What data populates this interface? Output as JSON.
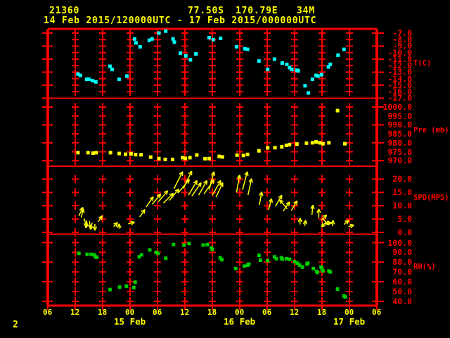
{
  "header": {
    "station_id": "21360",
    "latitude": "77.50S",
    "longitude": "170.79E",
    "elevation": "34M",
    "time_range": "14 Feb 2015/120000UTC - 17 Feb 2015/000000UTC"
  },
  "footer": {
    "page_number": "2"
  },
  "colors": {
    "background": "#000000",
    "frame": "#ff0000",
    "label_yellow": "#ffff00",
    "temp": "#00ffff",
    "pressure": "#ffff00",
    "wind": "#ffff00",
    "humidity": "#00cc00"
  },
  "chart_data": {
    "type": "scatter",
    "subtype": "meteogram-time-series",
    "title": "Station 21360 meteogram, 14 Feb 2015 12UTC - 17 Feb 2015 00UTC",
    "x_axis": {
      "unit": "hours since 14 Feb 2015 06UTC",
      "range_hours": [
        0,
        72
      ],
      "hour_labels": [
        {
          "t": 0,
          "label": "06"
        },
        {
          "t": 6,
          "label": "12"
        },
        {
          "t": 12,
          "label": "18"
        },
        {
          "t": 18,
          "label": "00"
        },
        {
          "t": 24,
          "label": "06"
        },
        {
          "t": 30,
          "label": "12"
        },
        {
          "t": 36,
          "label": "18"
        },
        {
          "t": 42,
          "label": "00"
        },
        {
          "t": 48,
          "label": "06"
        },
        {
          "t": 54,
          "label": "12"
        },
        {
          "t": 60,
          "label": "18"
        },
        {
          "t": 66,
          "label": "00"
        },
        {
          "t": 72,
          "label": "06"
        }
      ],
      "date_labels": [
        {
          "t": 18,
          "label": "15 Feb"
        },
        {
          "t": 42,
          "label": "16 Feb"
        },
        {
          "t": 66,
          "label": "17 Feb"
        }
      ],
      "grid_hours": [
        6,
        12,
        18,
        24,
        30,
        36,
        42,
        48,
        54,
        60,
        66
      ]
    },
    "panels": [
      {
        "id": "temp",
        "axis_title": "T(C)",
        "ticks": [
          -7.0,
          -8.0,
          -9.0,
          -10.0,
          -11.0,
          -12.0,
          -13.0,
          -14.0,
          -15.0,
          -16.0,
          -17.0
        ],
        "border_tick_step": 2,
        "marker": "square",
        "color_key": "temp",
        "points": [
          [
            6.6,
            -13.3
          ],
          [
            7.1,
            -13.5
          ],
          [
            8.5,
            -14.1
          ],
          [
            9.0,
            -14.1
          ],
          [
            9.8,
            -14.3
          ],
          [
            10.5,
            -14.5
          ],
          [
            13.6,
            -12.1
          ],
          [
            14.1,
            -12.6
          ],
          [
            15.6,
            -14.1
          ],
          [
            17.3,
            -13.6
          ],
          [
            19.0,
            -7.9
          ],
          [
            19.3,
            -8.5
          ],
          [
            20.2,
            -9.1
          ],
          [
            22.2,
            -8.1
          ],
          [
            22.8,
            -7.9
          ],
          [
            24.3,
            -7.0
          ],
          [
            25.8,
            -6.7
          ],
          [
            27.4,
            -7.9
          ],
          [
            27.7,
            -8.4
          ],
          [
            29.0,
            -10.1
          ],
          [
            30.2,
            -10.5
          ],
          [
            31.2,
            -11.1
          ],
          [
            32.4,
            -10.2
          ],
          [
            35.3,
            -7.7
          ],
          [
            36.2,
            -8.0
          ],
          [
            37.8,
            -7.8
          ],
          [
            41.3,
            -9.1
          ],
          [
            43.1,
            -9.4
          ],
          [
            43.7,
            -9.5
          ],
          [
            46.2,
            -11.3
          ],
          [
            48.1,
            -12.6
          ],
          [
            49.6,
            -11.0
          ],
          [
            51.3,
            -11.6
          ],
          [
            52.3,
            -11.8
          ],
          [
            52.9,
            -12.3
          ],
          [
            53.4,
            -12.6
          ],
          [
            54.5,
            -12.7
          ],
          [
            54.8,
            -12.8
          ],
          [
            56.3,
            -15.1
          ],
          [
            57.0,
            -16.2
          ],
          [
            57.9,
            -14.1
          ],
          [
            58.7,
            -13.5
          ],
          [
            59.1,
            -13.6
          ],
          [
            59.9,
            -13.4
          ],
          [
            61.4,
            -12.2
          ],
          [
            61.8,
            -11.8
          ],
          [
            63.5,
            -10.4
          ],
          [
            64.8,
            -9.5
          ]
        ]
      },
      {
        "id": "pressure",
        "axis_title": "Pre (mb)",
        "ticks": [
          1000.0,
          995.0,
          990.0,
          985.0,
          980.0,
          975.0,
          970.0
        ],
        "border_tick_step": 2,
        "marker": "square",
        "color_key": "pressure",
        "points": [
          [
            6.6,
            974.5
          ],
          [
            8.8,
            974.5
          ],
          [
            9.9,
            974.2
          ],
          [
            10.6,
            974.5
          ],
          [
            13.7,
            974.5
          ],
          [
            15.6,
            974.0
          ],
          [
            17.0,
            973.6
          ],
          [
            18.2,
            973.8
          ],
          [
            19.2,
            973.4
          ],
          [
            20.4,
            973.3
          ],
          [
            22.5,
            972.0
          ],
          [
            24.3,
            971.2
          ],
          [
            25.7,
            970.7
          ],
          [
            27.3,
            970.7
          ],
          [
            29.5,
            971.7
          ],
          [
            30.1,
            971.3
          ],
          [
            31.1,
            971.7
          ],
          [
            32.6,
            973.2
          ],
          [
            34.4,
            971.1
          ],
          [
            35.3,
            971.2
          ],
          [
            37.5,
            972.4
          ],
          [
            38.2,
            972.1
          ],
          [
            41.4,
            973.1
          ],
          [
            42.8,
            972.9
          ],
          [
            43.7,
            973.5
          ],
          [
            46.2,
            975.5
          ],
          [
            48.1,
            977.2
          ],
          [
            49.7,
            977.3
          ],
          [
            51.2,
            977.7
          ],
          [
            52.2,
            978.6
          ],
          [
            52.9,
            979.0
          ],
          [
            54.5,
            979.3
          ],
          [
            56.6,
            979.8
          ],
          [
            57.9,
            980.0
          ],
          [
            58.7,
            980.5
          ],
          [
            59.5,
            980.0
          ],
          [
            60.2,
            979.5
          ],
          [
            61.5,
            980.0
          ],
          [
            63.4,
            998.0
          ],
          [
            65.0,
            979.5
          ]
        ]
      },
      {
        "id": "wind",
        "axis_title": "SPD(MPS)",
        "ticks": [
          20.0,
          15.0,
          10.0,
          5.0,
          0.0
        ],
        "border_tick_step": 1,
        "marker": "arrow",
        "color_key": "wind",
        "arrows": [
          [
            6.8,
            6.2,
            25
          ],
          [
            7.3,
            5.6,
            15
          ],
          [
            7.9,
            5.2,
            160
          ],
          [
            8.5,
            4.6,
            185
          ],
          [
            9.1,
            4.2,
            170
          ],
          [
            9.7,
            3.6,
            195
          ],
          [
            10.3,
            3.2,
            180
          ],
          [
            11.0,
            4.0,
            35
          ],
          [
            14.4,
            2.2,
            45
          ],
          [
            15.6,
            1.4,
            0
          ],
          [
            17.6,
            3.2,
            75
          ],
          [
            20.1,
            5.8,
            35
          ],
          [
            21.5,
            9.5,
            35
          ],
          [
            22.8,
            10.5,
            40
          ],
          [
            24.2,
            11.5,
            40
          ],
          [
            25.3,
            11.0,
            45
          ],
          [
            26.6,
            12.0,
            40
          ],
          [
            27.6,
            16.4,
            27
          ],
          [
            28.5,
            14.8,
            40
          ],
          [
            29.7,
            16.5,
            25
          ],
          [
            30.8,
            14.0,
            30
          ],
          [
            31.5,
            13.6,
            35
          ],
          [
            33.0,
            14.0,
            30
          ],
          [
            34.2,
            14.5,
            35
          ],
          [
            35.3,
            16.0,
            15
          ],
          [
            36.0,
            14.0,
            30
          ],
          [
            36.8,
            13.2,
            25
          ],
          [
            41.3,
            15.0,
            10
          ],
          [
            42.6,
            16.0,
            15
          ],
          [
            43.8,
            14.0,
            12
          ],
          [
            46.3,
            10.3,
            10
          ],
          [
            48.3,
            8.5,
            15
          ],
          [
            49.8,
            9.8,
            30
          ],
          [
            51.5,
            8.0,
            35
          ],
          [
            52.4,
            8.8,
            320
          ],
          [
            53.3,
            8.2,
            30
          ],
          [
            55.2,
            3.0,
            0
          ],
          [
            56.2,
            2.4,
            10
          ],
          [
            57.8,
            6.6,
            5
          ],
          [
            59.3,
            5.5,
            0
          ],
          [
            59.8,
            4.5,
            45
          ],
          [
            60.2,
            5.0,
            135
          ],
          [
            60.6,
            3.5,
            90
          ],
          [
            61.0,
            4.0,
            225
          ],
          [
            62.3,
            2.4,
            5
          ],
          [
            64.8,
            3.0,
            50
          ],
          [
            65.8,
            2.2,
            75
          ]
        ]
      },
      {
        "id": "humidity",
        "axis_title": "RH(%)",
        "ticks": [
          100.0,
          90.0,
          80.0,
          70.0,
          60.0,
          50.0,
          40.0
        ],
        "border_tick_step": 2,
        "marker": "square",
        "color_key": "humidity",
        "points": [
          [
            6.8,
            89
          ],
          [
            8.6,
            88
          ],
          [
            9.5,
            88
          ],
          [
            10.2,
            87.5
          ],
          [
            10.4,
            85.5
          ],
          [
            10.7,
            85
          ],
          [
            13.6,
            52
          ],
          [
            15.7,
            54.5
          ],
          [
            17.2,
            55.5
          ],
          [
            18.8,
            54
          ],
          [
            19.1,
            59.5
          ],
          [
            20.0,
            85.5
          ],
          [
            20.5,
            87.5
          ],
          [
            22.3,
            92.5
          ],
          [
            23.7,
            90
          ],
          [
            24.1,
            89
          ],
          [
            25.8,
            84
          ],
          [
            27.5,
            98
          ],
          [
            29.8,
            97.5
          ],
          [
            30.9,
            99
          ],
          [
            34.0,
            97.5
          ],
          [
            34.9,
            98
          ],
          [
            35.8,
            94.5
          ],
          [
            36.0,
            93
          ],
          [
            37.7,
            84.5
          ],
          [
            38.1,
            82.5
          ],
          [
            41.1,
            73.5
          ],
          [
            43.0,
            76
          ],
          [
            43.7,
            77
          ],
          [
            44.0,
            78
          ],
          [
            46.2,
            87
          ],
          [
            46.5,
            82
          ],
          [
            48.1,
            81.5
          ],
          [
            49.6,
            85.5
          ],
          [
            50.0,
            83.5
          ],
          [
            51.1,
            84.5
          ],
          [
            51.3,
            83
          ],
          [
            52.2,
            83.5
          ],
          [
            52.9,
            83
          ],
          [
            54.0,
            80.5
          ],
          [
            54.6,
            79
          ],
          [
            55.1,
            77
          ],
          [
            55.7,
            75
          ],
          [
            56.7,
            78
          ],
          [
            56.9,
            79
          ],
          [
            58.1,
            73.5
          ],
          [
            58.8,
            70.5
          ],
          [
            59.0,
            69.5
          ],
          [
            59.8,
            75
          ],
          [
            60.0,
            73
          ],
          [
            60.2,
            71
          ],
          [
            61.5,
            71
          ],
          [
            61.8,
            70
          ],
          [
            63.4,
            52.5
          ],
          [
            64.8,
            45.5
          ],
          [
            65.1,
            44.5
          ]
        ]
      }
    ]
  }
}
